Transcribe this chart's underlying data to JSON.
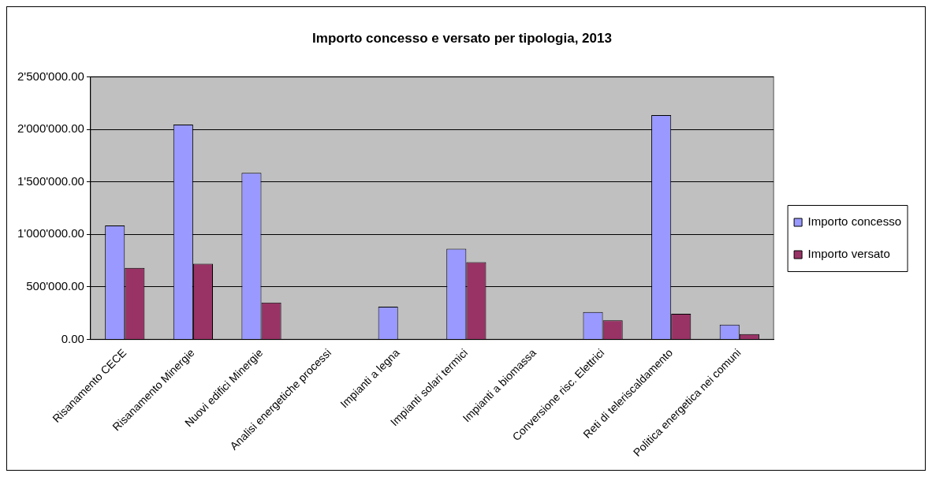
{
  "chart_data": {
    "type": "bar",
    "title": "Importo concesso e versato per tipologia, 2013",
    "categories": [
      "Risanamento CECE",
      "Risanamento Minergie",
      "Nuovi edifici Minergie",
      "Analisi energetiche processi",
      "Impianti a legna",
      "Impianti solari termici",
      "Impianti a biomassa",
      "Conversione risc. Elettrici",
      "Reti di teleriscaldamento",
      "Politica energetica nei comuni"
    ],
    "series": [
      {
        "name": "Importo concesso",
        "color": "#9999ff",
        "values": [
          1085000,
          2045000,
          1585000,
          null,
          312000,
          864000,
          0,
          261000,
          2136000,
          142000
        ]
      },
      {
        "name": "Importo versato",
        "color": "#993366",
        "values": [
          682000,
          721000,
          352000,
          null,
          0,
          736000,
          0,
          182000,
          245000,
          52000
        ]
      }
    ],
    "ylim": [
      0,
      2500000
    ],
    "yticks": [
      {
        "value": 0,
        "label": "0.00"
      },
      {
        "value": 500000,
        "label": "500'000.00"
      },
      {
        "value": 1000000,
        "label": "1'000'000.00"
      },
      {
        "value": 1500000,
        "label": "1'500'000.00"
      },
      {
        "value": 2000000,
        "label": "2'000'000.00"
      },
      {
        "value": 2500000,
        "label": "2'500'000.00"
      }
    ],
    "grid": "y",
    "legend": "right"
  }
}
